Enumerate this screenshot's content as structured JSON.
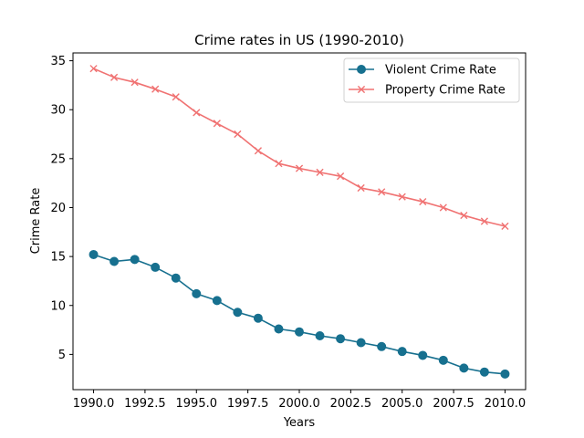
{
  "chart_data": {
    "type": "line",
    "title": "Crime rates in US (1990-2010)",
    "xlabel": "Years",
    "ylabel": "Crime Rate",
    "xlim": [
      1989.0,
      2011.0
    ],
    "ylim": [
      1.4,
      35.8
    ],
    "xticks": [
      1990.0,
      1992.5,
      1995.0,
      1997.5,
      2000.0,
      2002.5,
      2005.0,
      2007.5,
      2010.0
    ],
    "xtick_labels": [
      "1990.0",
      "1992.5",
      "1995.0",
      "1997.5",
      "2000.0",
      "2002.5",
      "2005.0",
      "2007.5",
      "2010.0"
    ],
    "yticks": [
      5,
      10,
      15,
      20,
      25,
      30,
      35
    ],
    "ytick_labels": [
      "5",
      "10",
      "15",
      "20",
      "25",
      "30",
      "35"
    ],
    "grid": false,
    "legend_position": "upper-right",
    "x": [
      1990,
      1991,
      1992,
      1993,
      1994,
      1995,
      1996,
      1997,
      1998,
      1999,
      2000,
      2001,
      2002,
      2003,
      2004,
      2005,
      2006,
      2007,
      2008,
      2009,
      2010
    ],
    "series": [
      {
        "name": "Violent Crime Rate",
        "color": "#17708f",
        "marker": "circle",
        "values": [
          15.2,
          14.5,
          14.7,
          13.9,
          12.8,
          11.2,
          10.5,
          9.3,
          8.7,
          7.6,
          7.3,
          6.9,
          6.6,
          6.2,
          5.8,
          5.3,
          4.9,
          4.4,
          3.6,
          3.2,
          3.0
        ]
      },
      {
        "name": "Property Crime Rate",
        "color": "#f07272",
        "marker": "x",
        "values": [
          34.2,
          33.3,
          32.8,
          32.1,
          31.3,
          29.7,
          28.6,
          27.5,
          25.8,
          24.5,
          24.0,
          23.6,
          23.2,
          22.0,
          21.6,
          21.1,
          20.6,
          20.0,
          19.2,
          18.6,
          18.1
        ]
      }
    ]
  }
}
